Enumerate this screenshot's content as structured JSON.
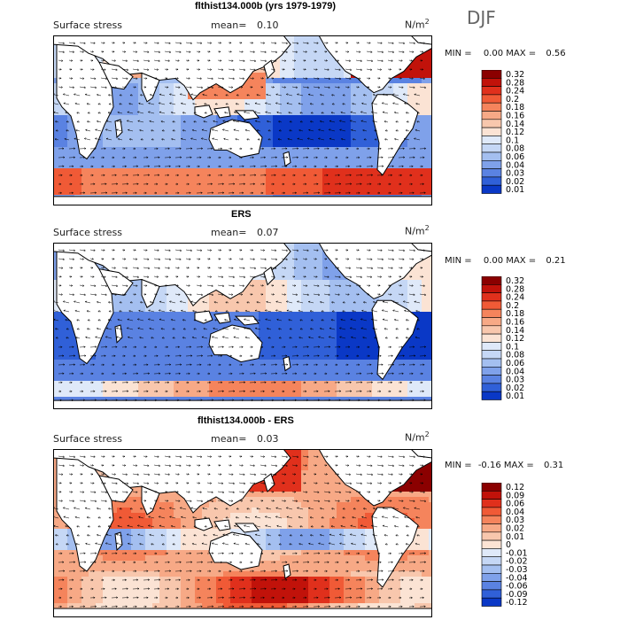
{
  "season": "DJF",
  "unit_base": "N/m",
  "unit_exp": "2",
  "chart_data": [
    {
      "type": "heatmap",
      "title": "flthist134.000b (yrs 1979-1979)",
      "subtitle": "Surface stress",
      "mean_label": "mean=",
      "mean": "0.10",
      "min_label": "MIN =",
      "min": "0.00",
      "max_label": "MAX =",
      "max": "0.56",
      "colorbar_levels": [
        "0.32",
        "0.28",
        "0.24",
        "0.2",
        "0.18",
        "0.16",
        "0.14",
        "0.12",
        "0.1",
        "0.08",
        "0.06",
        "0.04",
        "0.03",
        "0.02",
        "0.01"
      ],
      "colorbar_colors": [
        "#8b0000",
        "#c1120a",
        "#e0301c",
        "#f05a36",
        "#f5845c",
        "#f7a986",
        "#f8c7ad",
        "#fbe3d4",
        "#dfe9f9",
        "#c5d7f5",
        "#a4bff0",
        "#7fa1ea",
        "#5a82e2",
        "#3060d8",
        "#0a38c6"
      ]
    },
    {
      "type": "heatmap",
      "title": "ERS",
      "subtitle": "Surface stress",
      "mean_label": "mean=",
      "mean": "0.07",
      "min_label": "MIN =",
      "min": "0.00",
      "max_label": "MAX =",
      "max": "0.21",
      "colorbar_levels": [
        "0.32",
        "0.28",
        "0.24",
        "0.2",
        "0.18",
        "0.16",
        "0.14",
        "0.12",
        "0.1",
        "0.08",
        "0.06",
        "0.04",
        "0.03",
        "0.02",
        "0.01"
      ],
      "colorbar_colors": [
        "#8b0000",
        "#c1120a",
        "#e0301c",
        "#f05a36",
        "#f5845c",
        "#f7a986",
        "#f8c7ad",
        "#fbe3d4",
        "#dfe9f9",
        "#c5d7f5",
        "#a4bff0",
        "#7fa1ea",
        "#5a82e2",
        "#3060d8",
        "#0a38c6"
      ]
    },
    {
      "type": "heatmap",
      "title": "flthist134.000b - ERS",
      "subtitle": "Surface stress",
      "mean_label": "mean=",
      "mean": "0.03",
      "min_label": "MIN =",
      "min": "-0.16",
      "max_label": "MAX =",
      "max": "0.31",
      "colorbar_levels": [
        "0.12",
        "0.09",
        "0.06",
        "0.04",
        "0.03",
        "0.02",
        "0.01",
        "0",
        "-0.01",
        "-0.02",
        "-0.03",
        "-0.04",
        "-0.06",
        "-0.09",
        "-0.12"
      ],
      "colorbar_colors": [
        "#8b0000",
        "#c1120a",
        "#e0301c",
        "#f05a36",
        "#f5845c",
        "#f7a986",
        "#f8c7ad",
        "#fbe3d4",
        "#dfe9f9",
        "#c5d7f5",
        "#a4bff0",
        "#7fa1ea",
        "#5a82e2",
        "#3060d8",
        "#0a38c6"
      ]
    }
  ]
}
